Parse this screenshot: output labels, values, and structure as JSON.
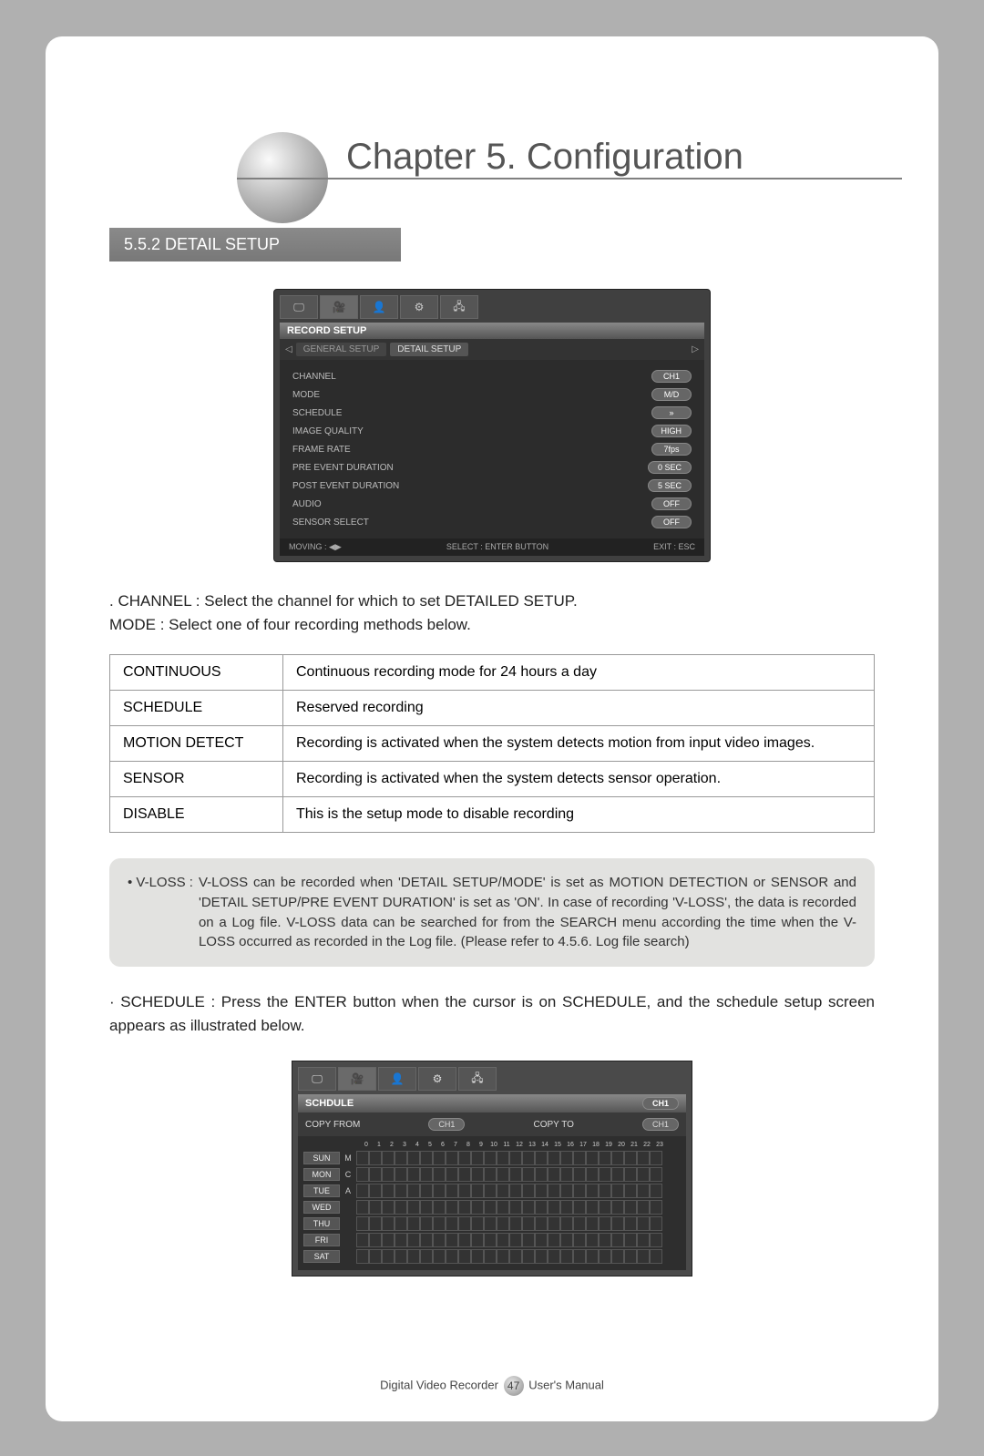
{
  "chapter": {
    "title": "Chapter 5. Configuration"
  },
  "section": {
    "number_title": "5.5.2  DETAIL SETUP"
  },
  "dvr1": {
    "title": "RECORD SETUP",
    "subtab_a": "GENERAL SETUP",
    "subtab_b": "DETAIL SETUP",
    "rows": {
      "channel_l": "CHANNEL",
      "channel_v": "CH1",
      "mode_l": "MODE",
      "mode_v": "M/D",
      "schedule_l": "SCHEDULE",
      "schedule_v": "»",
      "iq_l": "IMAGE QUALITY",
      "iq_v": "HIGH",
      "fr_l": "FRAME RATE",
      "fr_v": "7fps",
      "pre_l": "PRE EVENT DURATION",
      "pre_v": "0 SEC",
      "post_l": "POST EVENT DURATION",
      "post_v": "5 SEC",
      "audio_l": "AUDIO",
      "audio_v": "OFF",
      "sensor_l": "SENSOR SELECT",
      "sensor_v": "OFF"
    },
    "footer": {
      "left": "MOVING : ◀▶",
      "mid": "SELECT : ENTER BUTTON",
      "right": "EXIT : ESC"
    }
  },
  "body1": {
    "line1": ". CHANNEL : Select the channel for which to set DETAILED SETUP.",
    "line2": "MODE : Select one of four recording methods below."
  },
  "modes": {
    "cont_l": "CONTINUOUS",
    "cont_d": "Continuous recording mode for 24 hours a day",
    "sch_l": "SCHEDULE",
    "sch_d": "Reserved recording",
    "md_l": "MOTION DETECT",
    "md_d": "Recording is activated when the system detects motion from input video images.",
    "sen_l": "SENSOR",
    "sen_d": "Recording is activated when the system detects sensor operation.",
    "dis_l": "DISABLE",
    "dis_d": "This is the setup mode to disable recording"
  },
  "note": {
    "label": "• V-LOSS :",
    "text": "V-LOSS can be recorded when 'DETAIL SETUP/MODE' is set as MOTION DETECTION or SENSOR and 'DETAIL SETUP/PRE EVENT DURATION' is set as 'ON'. In case of recording 'V-LOSS', the data is recorded on a Log file. V-LOSS data can be searched for from the SEARCH menu according the time when the V-LOSS occurred as recorded in the Log file.  (Please refer to 4.5.6. Log file search)"
  },
  "schedule_para": "· SCHEDULE : Press the ENTER button when the cursor is on SCHEDULE, and the schedule setup screen appears as illustrated below.",
  "sch": {
    "title": "SCHDULE",
    "title_pill": "CH1",
    "copyfrom_l": "COPY FROM",
    "copyfrom_v": "CH1",
    "copyto_l": "COPY TO",
    "copyto_v": "CH1",
    "hours": [
      "0",
      "1",
      "2",
      "3",
      "4",
      "5",
      "6",
      "7",
      "8",
      "9",
      "10",
      "11",
      "12",
      "13",
      "14",
      "15",
      "16",
      "17",
      "18",
      "19",
      "20",
      "21",
      "22",
      "23"
    ],
    "days": [
      "SUN",
      "MON",
      "TUE",
      "WED",
      "THU",
      "FRI",
      "SAT"
    ],
    "letters": [
      "M",
      "C",
      "A",
      "",
      "",
      "",
      ""
    ]
  },
  "footer": {
    "left": "Digital Video Recorder",
    "page": "47",
    "right": "User's Manual"
  }
}
